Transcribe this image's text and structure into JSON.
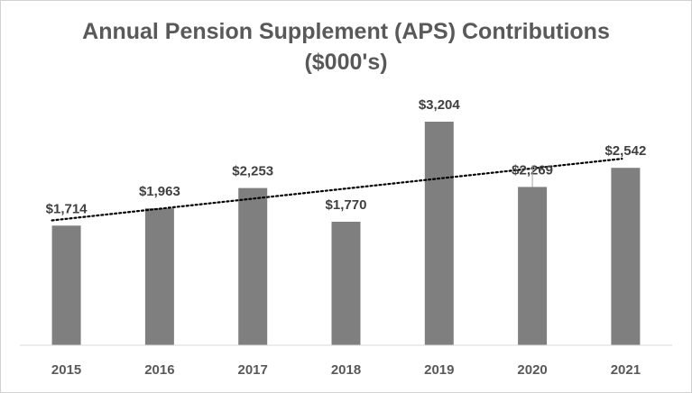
{
  "chart_data": {
    "type": "bar",
    "title": "Annual Pension Supplement (APS) Contributions",
    "subtitle": "($000's)",
    "xlabel": "",
    "ylabel": "",
    "categories": [
      "2015",
      "2016",
      "2017",
      "2018",
      "2019",
      "2020",
      "2021"
    ],
    "values": [
      1714,
      1963,
      2253,
      1770,
      3204,
      2269,
      2542
    ],
    "data_labels": [
      "$1,714",
      "$1,963",
      "$2,253",
      "$1,770",
      "$3,204",
      "$2,269",
      "$2,542"
    ],
    "ylim": [
      0,
      3500
    ],
    "grid": false,
    "legend": "none",
    "trendline": {
      "type": "linear",
      "style": "dotted"
    },
    "bar_color": "#7f7f7f",
    "trendline_color": "#000000"
  }
}
